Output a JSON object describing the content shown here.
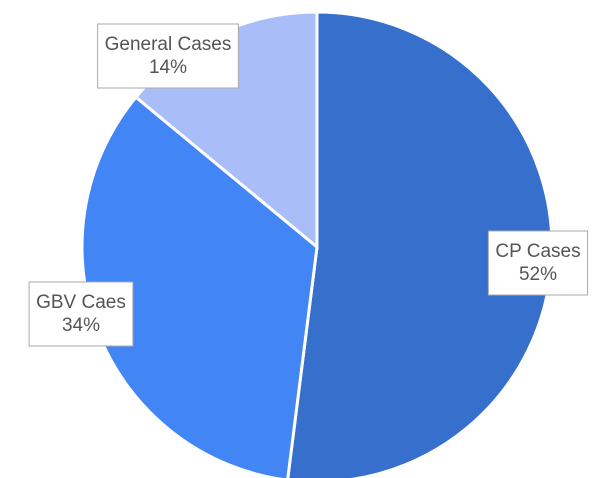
{
  "chart_data": {
    "type": "pie",
    "categories": [
      "CP Cases",
      "GBV Caes",
      "General Cases"
    ],
    "values": [
      52,
      34,
      14
    ],
    "value_labels": [
      "52%",
      "34%",
      "14%"
    ],
    "colors": [
      "#3670cc",
      "#4285f4",
      "#a9bdf8"
    ]
  }
}
